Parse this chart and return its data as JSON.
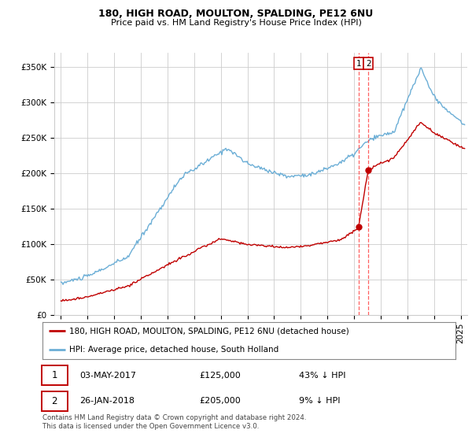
{
  "title1": "180, HIGH ROAD, MOULTON, SPALDING, PE12 6NU",
  "title2": "Price paid vs. HM Land Registry's House Price Index (HPI)",
  "ylabel_ticks": [
    "£0",
    "£50K",
    "£100K",
    "£150K",
    "£200K",
    "£250K",
    "£300K",
    "£350K"
  ],
  "ylabel_values": [
    0,
    50000,
    100000,
    150000,
    200000,
    250000,
    300000,
    350000
  ],
  "ylim": [
    0,
    370000
  ],
  "color_hpi": "#6baed6",
  "color_price": "#c00000",
  "color_vline": "#ff4444",
  "legend_label1": "180, HIGH ROAD, MOULTON, SPALDING, PE12 6NU (detached house)",
  "legend_label2": "HPI: Average price, detached house, South Holland",
  "transaction1_date": "03-MAY-2017",
  "transaction1_price": "£125,000",
  "transaction1_hpi": "43% ↓ HPI",
  "transaction1_x": 2017.34,
  "transaction1_y": 125000,
  "transaction2_date": "26-JAN-2018",
  "transaction2_price": "£205,000",
  "transaction2_hpi": "9% ↓ HPI",
  "transaction2_x": 2018.07,
  "transaction2_y": 205000,
  "footnote": "Contains HM Land Registry data © Crown copyright and database right 2024.\nThis data is licensed under the Open Government Licence v3.0.",
  "background_color": "#ffffff",
  "plot_bg_color": "#ffffff",
  "grid_color": "#cccccc",
  "xlim_left": 1994.5,
  "xlim_right": 2025.5
}
